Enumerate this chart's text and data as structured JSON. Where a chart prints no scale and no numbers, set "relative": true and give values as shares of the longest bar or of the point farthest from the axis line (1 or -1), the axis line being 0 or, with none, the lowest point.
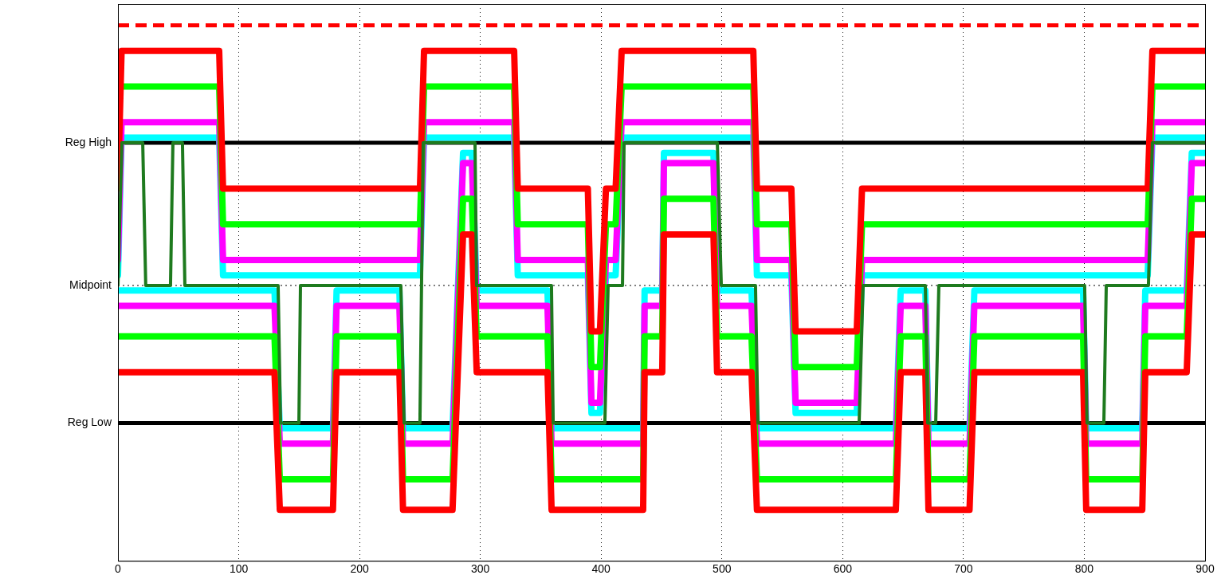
{
  "chart_data": {
    "type": "line",
    "relative": true,
    "xlim": [
      0,
      900
    ],
    "xticks": [
      0,
      100,
      200,
      300,
      400,
      500,
      600,
      700,
      800,
      900
    ],
    "grid": "x",
    "legend": false,
    "marker": "none",
    "line_style": "solid",
    "ref_lines": [
      {
        "axis": "y",
        "value": 1.05,
        "label": null,
        "color": "#ff0000",
        "line_style": "dashed"
      },
      {
        "axis": "y",
        "value": 0.82,
        "label": "Reg High",
        "color": "#000000",
        "line_style": "solid"
      },
      {
        "axis": "y",
        "value": 0.54,
        "label": "Midpoint",
        "color": "#000000",
        "line_style": "dotted"
      },
      {
        "axis": "y",
        "value": 0.27,
        "label": "Reg Low",
        "color": "#000000",
        "line_style": "solid"
      }
    ],
    "series": [
      {
        "color": "#00ffff",
        "x": [
          0,
          3,
          83.8,
          87,
          250,
          253.4,
          328,
          331,
          389,
          392,
          399,
          404,
          412,
          417,
          526,
          529,
          557.5,
          561,
          611.6,
          616,
          852.5,
          856.4,
          900
        ],
        "values": [
          0.56,
          0.83,
          0.83,
          0.56,
          0.56,
          0.83,
          0.83,
          0.56,
          0.56,
          0.29,
          0.29,
          0.56,
          0.56,
          0.83,
          0.83,
          0.56,
          0.56,
          0.29,
          0.29,
          0.56,
          0.56,
          0.83,
          0.83
        ]
      },
      {
        "color": "#00ffff",
        "x": [
          0,
          129.6,
          134,
          178,
          181,
          233,
          236,
          277,
          285.7,
          293,
          297,
          355.6,
          359,
          434.8,
          436,
          450.6,
          452,
          493,
          496,
          524.5,
          529,
          644,
          648,
          668.4,
          671,
          705,
          709,
          799,
          801.6,
          848,
          850.5,
          884.8,
          889,
          900
        ],
        "values": [
          0.53,
          0.53,
          0.26,
          0.26,
          0.53,
          0.53,
          0.26,
          0.26,
          0.8,
          0.8,
          0.53,
          0.53,
          0.26,
          0.26,
          0.53,
          0.53,
          0.8,
          0.8,
          0.53,
          0.53,
          0.26,
          0.26,
          0.53,
          0.53,
          0.26,
          0.26,
          0.53,
          0.53,
          0.26,
          0.26,
          0.53,
          0.53,
          0.8,
          0.8
        ]
      },
      {
        "color": "#ff00ff",
        "x": [
          0,
          3,
          83.8,
          87,
          250,
          253.4,
          328,
          331,
          389,
          392,
          399,
          404,
          412,
          417,
          526,
          529,
          557.5,
          561,
          611.6,
          616,
          852.5,
          856.4,
          900
        ],
        "values": [
          0.59,
          0.86,
          0.86,
          0.59,
          0.59,
          0.86,
          0.86,
          0.59,
          0.59,
          0.31,
          0.31,
          0.59,
          0.59,
          0.86,
          0.86,
          0.59,
          0.59,
          0.31,
          0.31,
          0.59,
          0.59,
          0.86,
          0.86
        ]
      },
      {
        "color": "#ff00ff",
        "x": [
          0,
          129.6,
          134,
          178,
          181,
          233,
          236,
          277,
          285.7,
          293,
          297,
          355.6,
          359,
          434.8,
          436,
          450.6,
          452,
          493,
          496,
          524.5,
          529,
          644,
          648,
          668.4,
          671,
          705,
          709,
          799,
          801.6,
          848,
          850.5,
          884.8,
          889,
          900
        ],
        "values": [
          0.5,
          0.5,
          0.23,
          0.23,
          0.5,
          0.5,
          0.23,
          0.23,
          0.78,
          0.78,
          0.5,
          0.5,
          0.23,
          0.23,
          0.5,
          0.5,
          0.78,
          0.78,
          0.5,
          0.5,
          0.23,
          0.23,
          0.5,
          0.5,
          0.23,
          0.23,
          0.5,
          0.5,
          0.23,
          0.23,
          0.5,
          0.5,
          0.78,
          0.78
        ]
      },
      {
        "color": "#00ff00",
        "x": [
          3,
          83.8,
          87,
          250,
          253.4,
          328,
          331,
          389,
          392,
          399,
          404,
          412,
          417,
          526,
          529,
          557.5,
          561,
          611.6,
          616,
          852.5,
          856.4,
          900
        ],
        "values": [
          0.93,
          0.93,
          0.66,
          0.66,
          0.93,
          0.93,
          0.66,
          0.66,
          0.38,
          0.38,
          0.66,
          0.66,
          0.93,
          0.93,
          0.66,
          0.66,
          0.38,
          0.38,
          0.66,
          0.66,
          0.93,
          0.93
        ]
      },
      {
        "color": "#00ff00",
        "x": [
          0,
          129.6,
          134,
          178,
          181,
          233,
          236,
          277,
          285.7,
          293,
          297,
          355.6,
          359,
          434.8,
          436,
          450.6,
          452,
          493,
          496,
          524.5,
          529,
          644,
          648,
          668.4,
          671,
          705,
          709,
          799,
          801.6,
          848,
          850.5,
          884.8,
          889,
          900
        ],
        "values": [
          0.44,
          0.44,
          0.16,
          0.16,
          0.44,
          0.44,
          0.16,
          0.16,
          0.71,
          0.71,
          0.44,
          0.44,
          0.16,
          0.16,
          0.44,
          0.44,
          0.71,
          0.71,
          0.44,
          0.44,
          0.16,
          0.16,
          0.44,
          0.44,
          0.16,
          0.16,
          0.44,
          0.44,
          0.16,
          0.16,
          0.44,
          0.44,
          0.71,
          0.71
        ]
      },
      {
        "color": "#ff0000",
        "x": [
          0,
          3,
          83.8,
          87,
          250,
          253.4,
          328,
          331,
          389,
          392,
          399,
          404,
          412,
          417,
          526,
          529,
          557.5,
          561,
          611.6,
          616,
          852.5,
          856.4,
          900
        ],
        "values": [
          0.73,
          1,
          1,
          0.73,
          0.73,
          1,
          1,
          0.73,
          0.73,
          0.45,
          0.45,
          0.73,
          0.73,
          1,
          1,
          0.73,
          0.73,
          0.45,
          0.45,
          0.73,
          0.73,
          1,
          1
        ]
      },
      {
        "color": "#ff0000",
        "x": [
          0,
          129.6,
          134,
          178,
          181,
          233,
          236,
          277,
          285.7,
          293,
          297,
          355.6,
          359,
          434.8,
          436,
          450.6,
          452,
          493,
          496,
          524.5,
          529,
          644,
          648,
          668.4,
          671,
          705,
          709,
          799,
          801.6,
          848,
          850.5,
          884.8,
          889,
          900
        ],
        "values": [
          0.37,
          0.37,
          0.1,
          0.1,
          0.37,
          0.37,
          0.1,
          0.1,
          0.64,
          0.64,
          0.37,
          0.37,
          0.1,
          0.1,
          0.37,
          0.37,
          0.64,
          0.64,
          0.37,
          0.37,
          0.1,
          0.1,
          0.37,
          0.37,
          0.1,
          0.1,
          0.37,
          0.37,
          0.1,
          0.1,
          0.37,
          0.37,
          0.64,
          0.64
        ]
      },
      {
        "color": "#1e7a1e",
        "x": [
          0,
          3.3,
          20.5,
          23,
          43.5,
          45.5,
          53.4,
          55.4,
          132.6,
          134.6,
          149.8,
          151.1,
          234.2,
          236.9,
          250,
          252.7,
          295.6,
          296.9,
          358.9,
          360.3,
          403.1,
          405.8,
          417.7,
          419,
          496.2,
          499.5,
          527.8,
          529.8,
          613.6,
          616.9,
          668.4,
          670.4,
          677,
          679.6,
          800.3,
          802.3,
          816.2,
          818.2,
          853.1,
          856.4,
          900
        ],
        "values": [
          0.54,
          0.82,
          0.82,
          0.54,
          0.54,
          0.82,
          0.82,
          0.54,
          0.54,
          0.27,
          0.27,
          0.54,
          0.54,
          0.27,
          0.27,
          0.82,
          0.82,
          0.54,
          0.54,
          0.27,
          0.27,
          0.54,
          0.54,
          0.82,
          0.82,
          0.54,
          0.54,
          0.27,
          0.27,
          0.54,
          0.54,
          0.27,
          0.27,
          0.54,
          0.54,
          0.27,
          0.27,
          0.54,
          0.54,
          0.82,
          0.82
        ]
      }
    ]
  }
}
